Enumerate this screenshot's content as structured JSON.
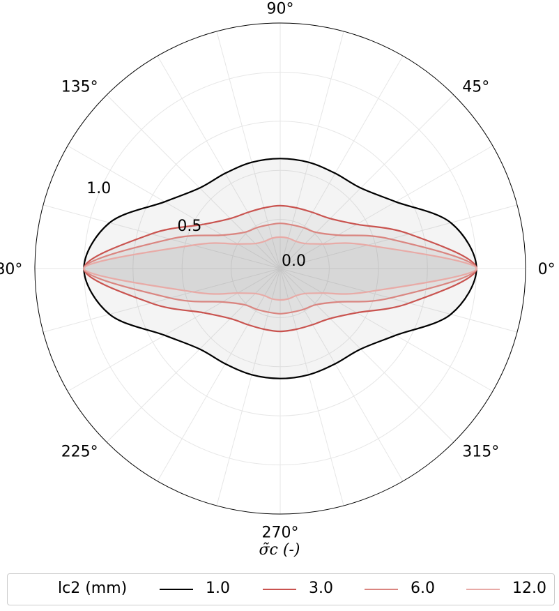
{
  "chart_data": {
    "type": "polar-line",
    "angle_ticks": [
      "0°",
      "45°",
      "90°",
      "135°",
      "180°",
      "225°",
      "270°",
      "315°"
    ],
    "angle_tick_values": [
      0,
      45,
      90,
      135,
      180,
      225,
      270,
      315
    ],
    "radial_ticks": [
      "0.0",
      "0.5",
      "1.0"
    ],
    "radial_tick_values": [
      0.0,
      0.5,
      1.0
    ],
    "rlim": [
      0,
      1.25
    ],
    "xlabel": "σ̃c (-)",
    "grid": true,
    "legend": {
      "title": "lc2  (mm)",
      "placement": "bottom",
      "entries": [
        "1.0",
        "3.0",
        "6.0",
        "12.0"
      ]
    },
    "series": [
      {
        "name": "1.0",
        "color": "#000000",
        "theta": [
          0,
          15,
          30,
          45,
          60,
          75,
          90
        ],
        "r": [
          1.0,
          0.9,
          0.68,
          0.58,
          0.56,
          0.56,
          0.56
        ]
      },
      {
        "name": "3.0",
        "color": "#c9534f",
        "theta": [
          0,
          15,
          30,
          45,
          60,
          75,
          90
        ],
        "r": [
          1.0,
          0.68,
          0.45,
          0.36,
          0.33,
          0.32,
          0.32
        ]
      },
      {
        "name": "6.0",
        "color": "#da8580",
        "theta": [
          0,
          15,
          30,
          45,
          60,
          75,
          90
        ],
        "r": [
          1.0,
          0.58,
          0.34,
          0.26,
          0.24,
          0.23,
          0.23
        ]
      },
      {
        "name": "12.0",
        "color": "#e8aaa6",
        "theta": [
          0,
          15,
          30,
          45,
          60,
          75,
          90
        ],
        "r": [
          1.0,
          0.46,
          0.25,
          0.18,
          0.16,
          0.16,
          0.16
        ]
      }
    ]
  }
}
